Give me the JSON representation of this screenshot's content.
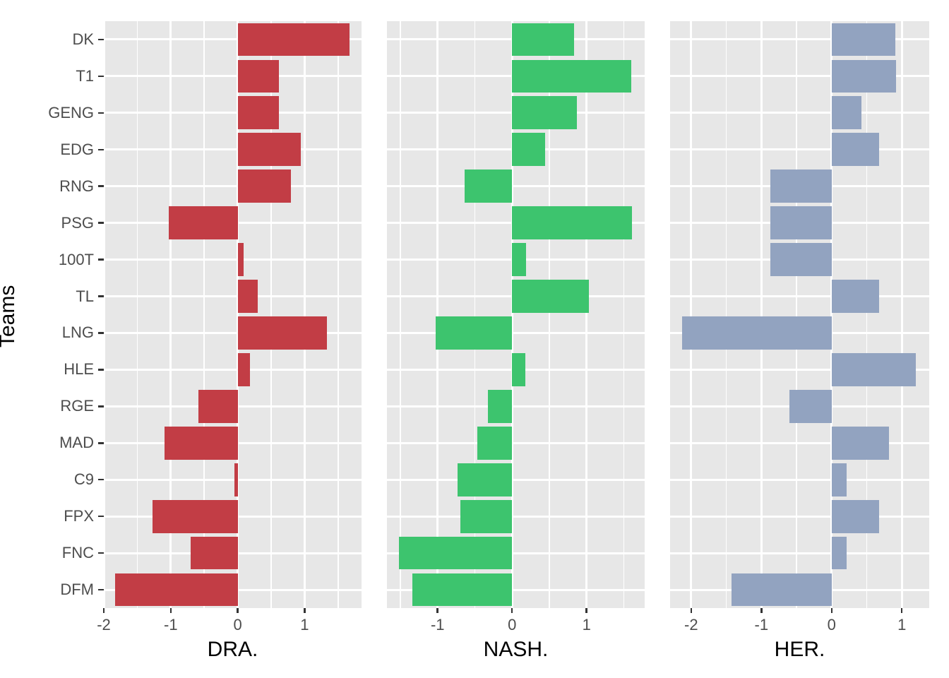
{
  "chart_data": {
    "type": "bar",
    "orientation": "horizontal",
    "ylabel": "Teams",
    "categories": [
      "DK",
      "T1",
      "GENG",
      "EDG",
      "RNG",
      "PSG",
      "100T",
      "TL",
      "LNG",
      "HLE",
      "RGE",
      "MAD",
      "C9",
      "FPX",
      "FNC",
      "DFM"
    ],
    "panels": [
      {
        "title": "DRA.",
        "color": "#C23D45",
        "xlim": [
          -2.0,
          1.85
        ],
        "xticks": [
          -2,
          -1,
          0,
          1
        ],
        "xtick_labels": [
          "-2",
          "-1",
          "0",
          "1"
        ],
        "values": [
          1.67,
          0.62,
          0.62,
          0.94,
          0.8,
          -1.03,
          0.09,
          0.3,
          1.33,
          0.18,
          -0.59,
          -1.09,
          -0.05,
          -1.27,
          -0.7,
          -1.83
        ]
      },
      {
        "title": "NASH.",
        "color": "#3DC46E",
        "xlim": [
          -1.68,
          1.78
        ],
        "xticks": [
          -1,
          0,
          1
        ],
        "xtick_labels": [
          "-1",
          "0",
          "1"
        ],
        "values": [
          0.83,
          1.6,
          0.87,
          0.44,
          -0.64,
          1.61,
          0.19,
          1.03,
          -1.03,
          0.18,
          -0.32,
          -0.47,
          -0.73,
          -0.69,
          -1.52,
          -1.34
        ]
      },
      {
        "title": "HER.",
        "color": "#92A3C0",
        "xlim": [
          -2.3,
          1.39
        ],
        "xticks": [
          -2,
          -1,
          0,
          1
        ],
        "xtick_labels": [
          "-2",
          "-1",
          "0",
          "1"
        ],
        "values": [
          0.91,
          0.92,
          0.42,
          0.68,
          -0.87,
          -0.87,
          -0.87,
          0.68,
          -2.13,
          1.2,
          -0.6,
          0.82,
          0.21,
          0.68,
          0.21,
          -1.43
        ]
      }
    ],
    "style": {
      "panel_bg": "#E7E7E7",
      "grid_color": "#FFFFFF",
      "tick_color": "#333333",
      "tick_label_color": "#4D4D4D",
      "title_color": "#000000",
      "legend": "none",
      "grid": "on"
    }
  }
}
